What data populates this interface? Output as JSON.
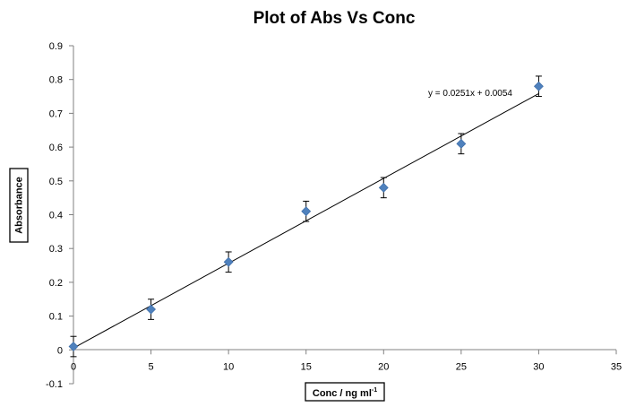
{
  "chart_data": {
    "type": "scatter",
    "title": "Plot of Abs Vs Conc",
    "xlabel": "Conc / ng ml",
    "xlabel_superscript": "-1",
    "ylabel": "Absorbance",
    "xlim": [
      0,
      35
    ],
    "ylim": [
      -0.1,
      0.9
    ],
    "xticks": [
      "0",
      "5",
      "10",
      "15",
      "20",
      "25",
      "30",
      "35"
    ],
    "yticks": [
      "-0.1",
      "0",
      "0.1",
      "0.2",
      "0.3",
      "0.4",
      "0.5",
      "0.6",
      "0.7",
      "0.8",
      "0.9"
    ],
    "grid": false,
    "legend": "none",
    "marker_color": "#4f81bd",
    "series": [
      {
        "x": [
          0,
          5,
          10,
          15,
          20,
          25,
          30
        ],
        "y": [
          0.01,
          0.12,
          0.26,
          0.41,
          0.48,
          0.61,
          0.78
        ],
        "error": [
          0.03,
          0.03,
          0.03,
          0.03,
          0.03,
          0.03,
          0.03
        ]
      }
    ],
    "trendline": {
      "slope": 0.0251,
      "intercept": 0.0054,
      "x_range": [
        0,
        30
      ],
      "equation": "y = 0.0251x + 0.0054"
    }
  }
}
